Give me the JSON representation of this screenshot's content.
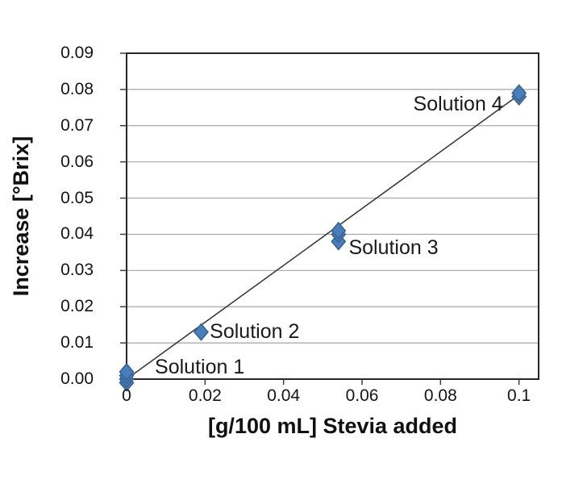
{
  "page": {
    "background": "#ffffff"
  },
  "chart_data": {
    "type": "scatter",
    "title": "",
    "xlabel": "[g/100 mL] Stevia added",
    "ylabel": "Increase [°Brix]",
    "xlim": [
      0,
      0.105
    ],
    "ylim": [
      0,
      0.09
    ],
    "grid": "horizontal-only",
    "legend": "none",
    "x_ticks": [
      {
        "value": 0,
        "label": "0"
      },
      {
        "value": 0.02,
        "label": "0.02"
      },
      {
        "value": 0.04,
        "label": "0.04"
      },
      {
        "value": 0.06,
        "label": "0.06"
      },
      {
        "value": 0.08,
        "label": "0.08"
      },
      {
        "value": 0.1,
        "label": "0.1"
      }
    ],
    "y_ticks": [
      {
        "value": 0.0,
        "label": "0.00"
      },
      {
        "value": 0.01,
        "label": "0.01"
      },
      {
        "value": 0.02,
        "label": "0.02"
      },
      {
        "value": 0.03,
        "label": "0.03"
      },
      {
        "value": 0.04,
        "label": "0.04"
      },
      {
        "value": 0.05,
        "label": "0.05"
      },
      {
        "value": 0.06,
        "label": "0.06"
      },
      {
        "value": 0.07,
        "label": "0.07"
      },
      {
        "value": 0.08,
        "label": "0.08"
      },
      {
        "value": 0.09,
        "label": "0.09"
      }
    ],
    "series": [
      {
        "name": "Solution 1",
        "points": [
          [
            0,
            -0.001
          ],
          [
            0,
            0.0
          ],
          [
            0,
            0.001
          ],
          [
            0,
            0.002
          ]
        ]
      },
      {
        "name": "Solution 2",
        "points": [
          [
            0.019,
            0.013
          ]
        ]
      },
      {
        "name": "Solution 3",
        "points": [
          [
            0.054,
            0.038
          ],
          [
            0.054,
            0.04
          ],
          [
            0.054,
            0.041
          ]
        ]
      },
      {
        "name": "Solution 4",
        "points": [
          [
            0.1,
            0.078
          ],
          [
            0.1,
            0.079
          ]
        ]
      }
    ],
    "trendline": {
      "type": "linear",
      "from": [
        0,
        0
      ],
      "to": [
        0.101,
        0.0793
      ],
      "slope": 0.785
    },
    "annotations": [
      {
        "text": "Solution 1",
        "x": 0.0072,
        "y": 0.0033,
        "align": "left"
      },
      {
        "text": "Solution 2",
        "x": 0.0212,
        "y": 0.0131,
        "align": "left"
      },
      {
        "text": "Solution 3",
        "x": 0.0566,
        "y": 0.0363,
        "align": "left"
      },
      {
        "text": "Solution 4",
        "x": 0.0959,
        "y": 0.0759,
        "align": "right"
      }
    ],
    "marker": {
      "shape": "diamond",
      "width": 17,
      "height": 20
    },
    "colors": {
      "marker_fill": "#4a7eba",
      "marker_stroke": "#36618e",
      "trendline": "#3a3a3a",
      "gridline": "#a6a6a6",
      "axis_border": "#262626",
      "tick_mark": "#404040",
      "text": "#000000"
    }
  }
}
